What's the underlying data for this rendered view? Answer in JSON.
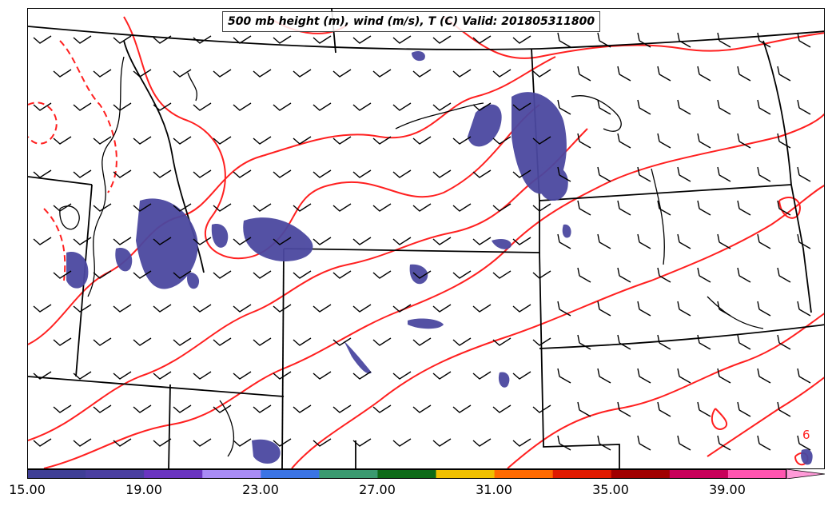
{
  "title": "500 mb height (m), wind (m/s), T (C) Valid: 201805311800",
  "colorbar": {
    "labels": [
      "15.00",
      "19.00",
      "23.00",
      "27.00",
      "31.00",
      "35.00",
      "39.00"
    ],
    "colors": [
      "#3f3f96",
      "#4a3fa0",
      "#6a35c0",
      "#a98cf5",
      "#3b74e4",
      "#3a9a70",
      "#0e6a18",
      "#f0c000",
      "#ff6a00",
      "#e01a00",
      "#a00000",
      "#c8005a",
      "#ff55b0",
      "#ff9ad8"
    ]
  },
  "contour_label": "6",
  "map": {
    "boundary_color": "#000000",
    "contour_color": "#ff2020",
    "shade_color": "#4b48a0"
  }
}
